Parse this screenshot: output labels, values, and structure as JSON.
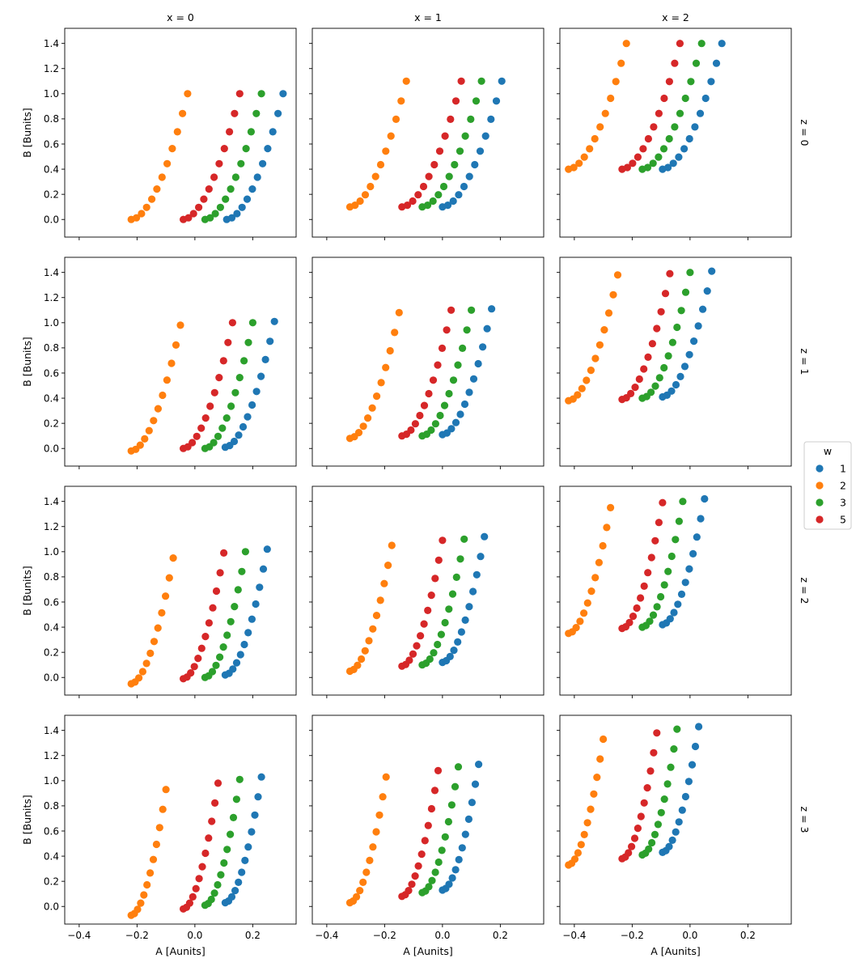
{
  "chart_data": {
    "type": "scatter",
    "layout": "facet grid, 4 rows x 3 columns, shared axes",
    "xlabel": "A [Aunits]",
    "ylabel": "B [Bunits]",
    "xlim": [
      -0.45,
      0.35
    ],
    "ylim": [
      -0.14,
      1.52
    ],
    "xticks": [
      -0.4,
      -0.2,
      0.0,
      0.2
    ],
    "xtick_labels": [
      "−0.4",
      "−0.2",
      "0.0",
      "0.2"
    ],
    "yticks": [
      0.0,
      0.2,
      0.4,
      0.6,
      0.8,
      1.0,
      1.2,
      1.4
    ],
    "ytick_labels": [
      "0.0",
      "0.2",
      "0.4",
      "0.6",
      "0.8",
      "1.0",
      "1.2",
      "1.4"
    ],
    "col_titles": [
      "x = 0",
      "x = 1",
      "x = 2"
    ],
    "row_titles": [
      "z = 0",
      "z = 1",
      "z = 2",
      "z = 3"
    ],
    "legend": {
      "title": "w",
      "placement": "right",
      "entries": [
        {
          "label": "1",
          "color": "#1f77b4"
        },
        {
          "label": "2",
          "color": "#ff7f0e"
        },
        {
          "label": "3",
          "color": "#2ca02c"
        },
        {
          "label": "5",
          "color": "#d62728"
        }
      ]
    },
    "points_per_series": 12,
    "panels": [
      {
        "row": 0,
        "col": 0,
        "series": [
          {
            "w": "1",
            "A_start": 0.11,
            "A_end": 0.305,
            "B_start": 0.0,
            "B_end": 1.0
          },
          {
            "w": "2",
            "A_start": -0.22,
            "A_end": -0.025,
            "B_start": 0.0,
            "B_end": 1.0
          },
          {
            "w": "3",
            "A_start": 0.035,
            "A_end": 0.23,
            "B_start": 0.0,
            "B_end": 1.0
          },
          {
            "w": "5",
            "A_start": -0.04,
            "A_end": 0.155,
            "B_start": 0.0,
            "B_end": 1.0
          }
        ]
      },
      {
        "row": 0,
        "col": 1,
        "series": [
          {
            "w": "1",
            "A_start": 0.0,
            "A_end": 0.205,
            "B_start": 0.1,
            "B_end": 1.1
          },
          {
            "w": "2",
            "A_start": -0.32,
            "A_end": -0.125,
            "B_start": 0.1,
            "B_end": 1.1
          },
          {
            "w": "3",
            "A_start": -0.07,
            "A_end": 0.135,
            "B_start": 0.1,
            "B_end": 1.1
          },
          {
            "w": "5",
            "A_start": -0.14,
            "A_end": 0.065,
            "B_start": 0.1,
            "B_end": 1.1
          }
        ]
      },
      {
        "row": 0,
        "col": 2,
        "series": [
          {
            "w": "1",
            "A_start": -0.095,
            "A_end": 0.11,
            "B_start": 0.4,
            "B_end": 1.4
          },
          {
            "w": "2",
            "A_start": -0.42,
            "A_end": -0.22,
            "B_start": 0.4,
            "B_end": 1.4
          },
          {
            "w": "3",
            "A_start": -0.165,
            "A_end": 0.04,
            "B_start": 0.4,
            "B_end": 1.4
          },
          {
            "w": "5",
            "A_start": -0.235,
            "A_end": -0.035,
            "B_start": 0.4,
            "B_end": 1.4
          }
        ]
      },
      {
        "row": 1,
        "col": 0,
        "series": [
          {
            "w": "1",
            "A_start": 0.105,
            "A_end": 0.275,
            "B_start": 0.01,
            "B_end": 1.01
          },
          {
            "w": "2",
            "A_start": -0.22,
            "A_end": -0.05,
            "B_start": -0.02,
            "B_end": 0.98
          },
          {
            "w": "3",
            "A_start": 0.035,
            "A_end": 0.2,
            "B_start": 0.0,
            "B_end": 1.0
          },
          {
            "w": "5",
            "A_start": -0.04,
            "A_end": 0.13,
            "B_start": 0.0,
            "B_end": 1.0
          }
        ]
      },
      {
        "row": 1,
        "col": 1,
        "series": [
          {
            "w": "1",
            "A_start": 0.0,
            "A_end": 0.17,
            "B_start": 0.11,
            "B_end": 1.11
          },
          {
            "w": "2",
            "A_start": -0.32,
            "A_end": -0.15,
            "B_start": 0.08,
            "B_end": 1.08
          },
          {
            "w": "3",
            "A_start": -0.07,
            "A_end": 0.1,
            "B_start": 0.1,
            "B_end": 1.1
          },
          {
            "w": "5",
            "A_start": -0.14,
            "A_end": 0.03,
            "B_start": 0.1,
            "B_end": 1.1
          }
        ]
      },
      {
        "row": 1,
        "col": 2,
        "series": [
          {
            "w": "1",
            "A_start": -0.095,
            "A_end": 0.075,
            "B_start": 0.41,
            "B_end": 1.41
          },
          {
            "w": "2",
            "A_start": -0.42,
            "A_end": -0.25,
            "B_start": 0.38,
            "B_end": 1.38
          },
          {
            "w": "3",
            "A_start": -0.165,
            "A_end": 0.0,
            "B_start": 0.4,
            "B_end": 1.4
          },
          {
            "w": "5",
            "A_start": -0.235,
            "A_end": -0.07,
            "B_start": 0.39,
            "B_end": 1.39
          }
        ]
      },
      {
        "row": 2,
        "col": 0,
        "series": [
          {
            "w": "1",
            "A_start": 0.105,
            "A_end": 0.25,
            "B_start": 0.02,
            "B_end": 1.02
          },
          {
            "w": "2",
            "A_start": -0.22,
            "A_end": -0.075,
            "B_start": -0.05,
            "B_end": 0.95
          },
          {
            "w": "3",
            "A_start": 0.035,
            "A_end": 0.175,
            "B_start": 0.0,
            "B_end": 1.0
          },
          {
            "w": "5",
            "A_start": -0.04,
            "A_end": 0.1,
            "B_start": -0.01,
            "B_end": 0.99
          }
        ]
      },
      {
        "row": 2,
        "col": 1,
        "series": [
          {
            "w": "1",
            "A_start": 0.0,
            "A_end": 0.145,
            "B_start": 0.12,
            "B_end": 1.12
          },
          {
            "w": "2",
            "A_start": -0.32,
            "A_end": -0.175,
            "B_start": 0.05,
            "B_end": 1.05
          },
          {
            "w": "3",
            "A_start": -0.07,
            "A_end": 0.075,
            "B_start": 0.1,
            "B_end": 1.1
          },
          {
            "w": "5",
            "A_start": -0.14,
            "A_end": 0.0,
            "B_start": 0.09,
            "B_end": 1.09
          }
        ]
      },
      {
        "row": 2,
        "col": 2,
        "series": [
          {
            "w": "1",
            "A_start": -0.095,
            "A_end": 0.05,
            "B_start": 0.42,
            "B_end": 1.42
          },
          {
            "w": "2",
            "A_start": -0.42,
            "A_end": -0.275,
            "B_start": 0.35,
            "B_end": 1.35
          },
          {
            "w": "3",
            "A_start": -0.165,
            "A_end": -0.025,
            "B_start": 0.4,
            "B_end": 1.4
          },
          {
            "w": "5",
            "A_start": -0.235,
            "A_end": -0.095,
            "B_start": 0.39,
            "B_end": 1.39
          }
        ]
      },
      {
        "row": 3,
        "col": 0,
        "series": [
          {
            "w": "1",
            "A_start": 0.105,
            "A_end": 0.23,
            "B_start": 0.03,
            "B_end": 1.03
          },
          {
            "w": "2",
            "A_start": -0.22,
            "A_end": -0.1,
            "B_start": -0.07,
            "B_end": 0.93
          },
          {
            "w": "3",
            "A_start": 0.035,
            "A_end": 0.155,
            "B_start": 0.01,
            "B_end": 1.01
          },
          {
            "w": "5",
            "A_start": -0.04,
            "A_end": 0.08,
            "B_start": -0.02,
            "B_end": 0.98
          }
        ]
      },
      {
        "row": 3,
        "col": 1,
        "series": [
          {
            "w": "1",
            "A_start": 0.0,
            "A_end": 0.125,
            "B_start": 0.13,
            "B_end": 1.13
          },
          {
            "w": "2",
            "A_start": -0.32,
            "A_end": -0.195,
            "B_start": 0.03,
            "B_end": 1.03
          },
          {
            "w": "3",
            "A_start": -0.07,
            "A_end": 0.055,
            "B_start": 0.11,
            "B_end": 1.11
          },
          {
            "w": "5",
            "A_start": -0.14,
            "A_end": -0.015,
            "B_start": 0.08,
            "B_end": 1.08
          }
        ]
      },
      {
        "row": 3,
        "col": 2,
        "series": [
          {
            "w": "1",
            "A_start": -0.095,
            "A_end": 0.03,
            "B_start": 0.43,
            "B_end": 1.43
          },
          {
            "w": "2",
            "A_start": -0.42,
            "A_end": -0.3,
            "B_start": 0.33,
            "B_end": 1.33
          },
          {
            "w": "3",
            "A_start": -0.165,
            "A_end": -0.045,
            "B_start": 0.41,
            "B_end": 1.41
          },
          {
            "w": "5",
            "A_start": -0.235,
            "A_end": -0.115,
            "B_start": 0.38,
            "B_end": 1.38
          }
        ]
      }
    ]
  }
}
